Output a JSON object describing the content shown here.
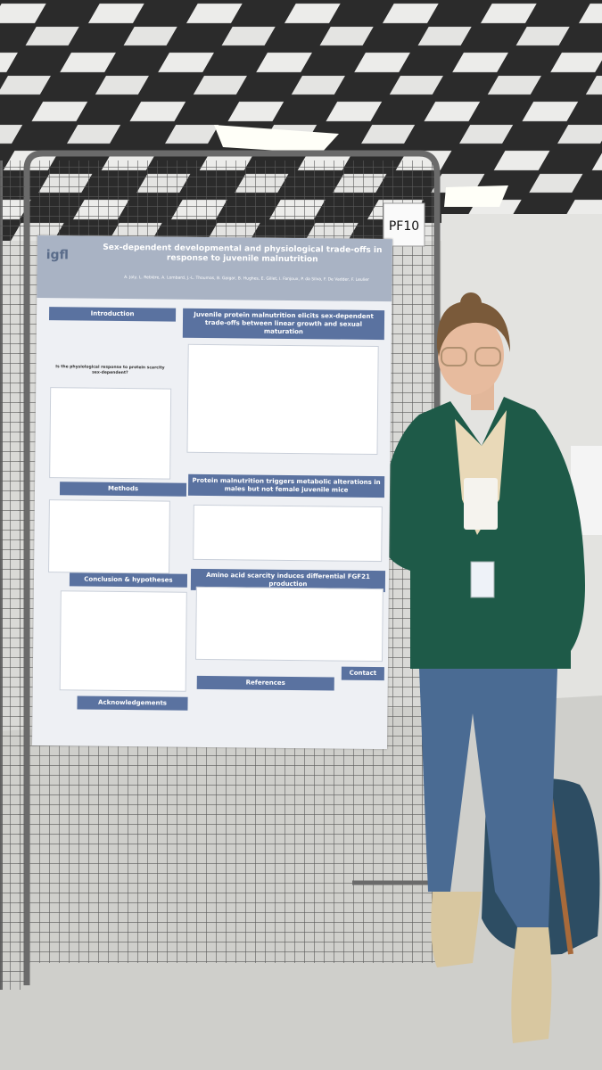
{
  "photo": {
    "booth_label": "PF10",
    "poster": {
      "logo": "igfl",
      "title": "Sex-dependent developmental and physiological trade-offs in response to juvenile malnutrition",
      "authors": "A. Joly, L. Rebière, A. Lombard, J.-L. Thoumas, B. Gaigar, B. Hughes, E. Gillet, I. Fanjoux, P. da Silva, F. De Vadder, F. Leulier",
      "intro": {
        "heading": "Introduction",
        "question": "Is the physiological response to protein scarcity sex-dependent?"
      },
      "methods": {
        "heading": "Methods"
      },
      "conclusion": {
        "heading": "Conclusion & hypotheses"
      },
      "acknowledgements": {
        "heading": "Acknowledgements"
      },
      "result_1": {
        "heading": "Juvenile protein malnutrition elicits sex-dependent trade-offs between linear growth and sexual maturation"
      },
      "result_2": {
        "heading": "Protein malnutrition triggers metabolic alterations in males but not female juvenile mice"
      },
      "result_3": {
        "heading": "Amino acid scarcity induces differential FGF21 production"
      },
      "references": {
        "heading": "References"
      },
      "contact": {
        "heading": "Contact"
      }
    }
  }
}
